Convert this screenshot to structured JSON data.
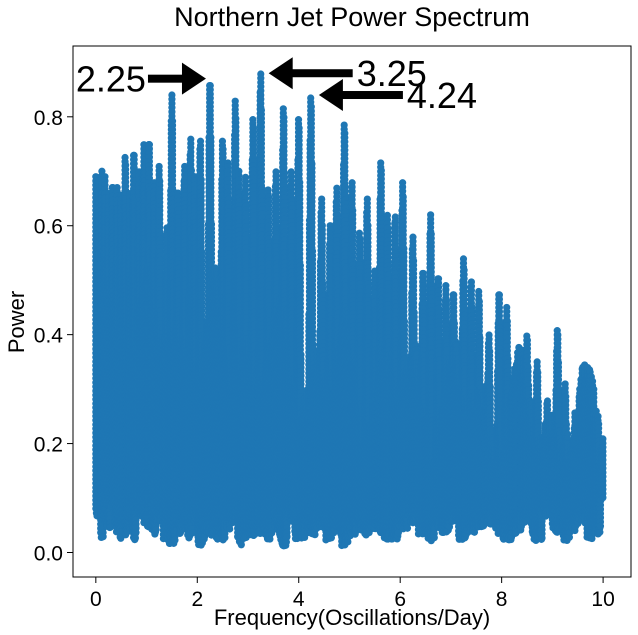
{
  "chart_data": {
    "type": "scatter",
    "title": "Northern Jet Power Spectrum",
    "xlabel": "Frequency(Oscillations/Day)",
    "ylabel": "Power",
    "xlim": [
      -0.45,
      10.55
    ],
    "ylim": [
      -0.045,
      0.93
    ],
    "xticks": [
      0,
      2,
      4,
      6,
      8,
      10
    ],
    "xtick_labels": [
      "0",
      "2",
      "4",
      "6",
      "8",
      "10"
    ],
    "yticks": [
      0.0,
      0.2,
      0.4,
      0.6,
      0.8
    ],
    "ytick_labels": [
      "0.0",
      "0.2",
      "0.4",
      "0.6",
      "0.8"
    ],
    "grid": false,
    "color": "#1f77b4",
    "series": [
      {
        "peaks_x": [
          0.0,
          0.06,
          0.12,
          0.18,
          0.25,
          0.33,
          0.42,
          0.5,
          0.58,
          0.67,
          0.75,
          0.85,
          0.95,
          1.05,
          1.15,
          1.25,
          1.4,
          1.5,
          1.62,
          1.75,
          1.87,
          1.95,
          2.06,
          2.25,
          2.5,
          2.6,
          2.75,
          2.82,
          2.95,
          3.1,
          3.25,
          3.4,
          3.55,
          3.7,
          3.85,
          4.0,
          4.24,
          4.45,
          4.62,
          4.75,
          4.9,
          5.05,
          5.2,
          5.35,
          5.5,
          5.62,
          5.75,
          5.9,
          6.05,
          6.25,
          6.45,
          6.6,
          6.75,
          6.9,
          7.05,
          7.25,
          7.4,
          7.55,
          7.75,
          7.95,
          8.1,
          8.3,
          8.5,
          8.7,
          8.9,
          9.1,
          9.25,
          9.45,
          9.6,
          9.75,
          9.9,
          10.0
        ],
        "peaks_y": [
          0.69,
          0.68,
          0.7,
          0.69,
          0.66,
          0.68,
          0.67,
          0.66,
          0.73,
          0.66,
          0.74,
          0.7,
          0.75,
          0.76,
          0.68,
          0.71,
          0.6,
          0.84,
          0.66,
          0.71,
          0.76,
          0.7,
          0.76,
          0.87,
          0.76,
          0.72,
          0.83,
          0.7,
          0.69,
          0.8,
          0.88,
          0.67,
          0.7,
          0.82,
          0.7,
          0.8,
          0.84,
          0.65,
          0.6,
          0.67,
          0.79,
          0.68,
          0.59,
          0.65,
          0.52,
          0.72,
          0.62,
          0.62,
          0.68,
          0.58,
          0.52,
          0.62,
          0.51,
          0.49,
          0.48,
          0.54,
          0.5,
          0.48,
          0.4,
          0.48,
          0.45,
          0.3,
          0.4,
          0.35,
          0.28,
          0.41,
          0.31,
          0.26,
          0.34,
          0.23,
          0.25,
          0.21
        ],
        "floor_y": [
          0.06,
          0.07,
          0.02,
          0.05,
          0.04,
          0.07,
          0.03,
          0.02,
          0.03,
          0.04,
          0.02,
          0.06,
          0.05,
          0.04,
          0.03,
          0.05,
          0.02,
          0.01,
          0.03,
          0.04,
          0.02,
          0.05,
          0.01,
          0.03,
          0.02,
          0.04,
          0.05,
          0.01,
          0.02,
          0.03,
          0.03,
          0.02,
          0.04,
          0.01,
          0.05,
          0.02,
          0.03,
          0.04,
          0.02,
          0.03,
          0.01,
          0.02,
          0.04,
          0.03,
          0.04,
          0.03,
          0.02,
          0.02,
          0.04,
          0.05,
          0.03,
          0.02,
          0.04,
          0.03,
          0.05,
          0.02,
          0.03,
          0.04,
          0.05,
          0.03,
          0.02,
          0.03,
          0.05,
          0.02,
          0.06,
          0.03,
          0.02,
          0.04,
          0.05,
          0.02,
          0.03,
          0.09
        ]
      }
    ],
    "annotations": [
      {
        "label": "2.25",
        "x": 2.25,
        "y": 0.87,
        "arrow_from": "left"
      },
      {
        "label": "3.25",
        "x": 3.25,
        "y": 0.88,
        "arrow_from": "right"
      },
      {
        "label": "4.24",
        "x": 4.24,
        "y": 0.84,
        "arrow_from": "right"
      }
    ]
  }
}
